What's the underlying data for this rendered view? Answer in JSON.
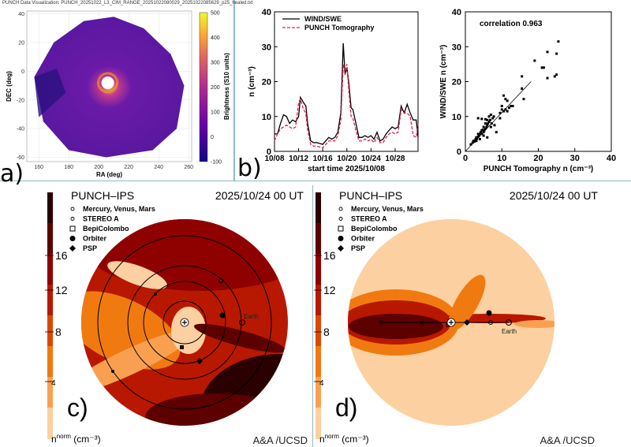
{
  "panel_a": {
    "label": "a)",
    "title": "PUNCH Data Visualization: PUNCH_20251022_L3_CIM_RANGE_20251022080029_20251022085629_p25_healed.txt",
    "chart_data": {
      "type": "heatmap",
      "xlabel": "RA (deg)",
      "ylabel": "DEC (deg)",
      "xlim": [
        152,
        262
      ],
      "ylim": [
        -63,
        42
      ],
      "xticks": [
        160,
        180,
        200,
        220,
        240,
        260
      ],
      "yticks": [
        40,
        20,
        0,
        -20,
        -40,
        -60
      ],
      "colorbar": {
        "label": "Brightness (S10 units)",
        "range": [
          -100,
          500
        ],
        "ticks": [
          500,
          400,
          300,
          200,
          100,
          0,
          -100
        ],
        "colormap": "plasma"
      }
    }
  },
  "panel_b": {
    "label": "b)",
    "chart_data": [
      {
        "type": "line",
        "xlabel": "start time 2025/10/08",
        "ylabel": "n (cm⁻³)",
        "ylim": [
          0,
          40
        ],
        "xlim_days": [
          0,
          23.8
        ],
        "xticks": [
          "10/08",
          "10/12",
          "10/16",
          "10/20",
          "10/24",
          "10/28"
        ],
        "yticks": [
          0,
          10,
          20,
          30,
          40
        ],
        "legend": "top-left",
        "x_days": [
          0,
          0.5,
          1,
          1.5,
          2,
          2.5,
          3,
          3.5,
          4,
          4.3,
          4.8,
          5.2,
          5.5,
          6,
          6.5,
          7,
          8,
          8.5,
          9,
          9.5,
          10,
          10.5,
          11,
          11.4,
          11.7,
          12,
          12.3,
          12.7,
          13,
          13.5,
          14,
          14.5,
          15,
          15.5,
          16,
          16.5,
          17,
          17.5,
          18,
          18.5,
          19,
          19.5,
          20,
          20.5,
          21,
          21.5,
          22,
          22.5,
          23,
          23.5,
          23.8
        ],
        "series": [
          {
            "name": "WIND/SWE",
            "color": "#000000",
            "values": [
              5,
              5,
              8,
              10.5,
              10,
              8,
              9,
              8.5,
              10,
              15.5,
              14,
              13,
              8,
              3,
              2.5,
              2.5,
              2,
              3,
              4,
              3.5,
              4,
              5.5,
              11,
              31,
              22,
              24,
              20,
              12.5,
              12,
              8,
              4,
              4,
              4.5,
              4,
              4.5,
              3.5,
              5.5,
              3,
              3.5,
              5,
              6,
              7,
              6.5,
              7,
              13,
              11,
              13.5,
              11,
              9,
              9,
              4
            ]
          },
          {
            "name": "PUNCH Tomography",
            "color": "#e0204a",
            "values": [
              3,
              5,
              6.5,
              7,
              7.5,
              7,
              6.5,
              7,
              14,
              15,
              12,
              11,
              6,
              2,
              1.5,
              1.5,
              1,
              2,
              3,
              3,
              3,
              4.5,
              9,
              25,
              22,
              25,
              18,
              10,
              9.5,
              6,
              3,
              3,
              3.5,
              3,
              3.5,
              2.5,
              4,
              2.5,
              2.5,
              4,
              5,
              5.5,
              5,
              5.5,
              12,
              11,
              11,
              10,
              4.5,
              4,
              8
            ]
          }
        ]
      },
      {
        "type": "scatter",
        "xlabel": "PUNCH Tomography n (cm⁻³)",
        "ylabel": "WIND/SWE n (cm⁻³)",
        "xlim": [
          0,
          40
        ],
        "ylim": [
          0,
          40
        ],
        "xticks": [
          0,
          10,
          20,
          30,
          40
        ],
        "yticks": [
          0,
          10,
          20,
          30,
          40
        ],
        "annotation": "correlation 0.963",
        "fit_line": [
          [
            0,
            0
          ],
          [
            18,
            20
          ]
        ],
        "points": [
          [
            1.5,
            2
          ],
          [
            2,
            2.5
          ],
          [
            2.2,
            3
          ],
          [
            2.5,
            2.8
          ],
          [
            2.8,
            3.5
          ],
          [
            3,
            3
          ],
          [
            3,
            4
          ],
          [
            3.2,
            3.6
          ],
          [
            3.5,
            4.2
          ],
          [
            3.5,
            5
          ],
          [
            3.8,
            4.5
          ],
          [
            4,
            5
          ],
          [
            4,
            3.5
          ],
          [
            4.2,
            5.5
          ],
          [
            4.5,
            5
          ],
          [
            4.5,
            6
          ],
          [
            4.8,
            6.2
          ],
          [
            5,
            5.5
          ],
          [
            5,
            7
          ],
          [
            5.2,
            6
          ],
          [
            5.5,
            6.5
          ],
          [
            5.5,
            8
          ],
          [
            5.8,
            7
          ],
          [
            6,
            7.5
          ],
          [
            6,
            9
          ],
          [
            6.2,
            8
          ],
          [
            6.5,
            8.5
          ],
          [
            6.5,
            10
          ],
          [
            6.8,
            9
          ],
          [
            7,
            7
          ],
          [
            7,
            10.5
          ],
          [
            7.2,
            8
          ],
          [
            7.5,
            9.5
          ],
          [
            7.8,
            10
          ],
          [
            5,
            4.5
          ],
          [
            6,
            4
          ],
          [
            8.5,
            5.5
          ],
          [
            8,
            7.5
          ],
          [
            3.5,
            9.5
          ],
          [
            4.5,
            9.3
          ],
          [
            5.5,
            9.2
          ],
          [
            9.5,
            9.5
          ],
          [
            9.5,
            11
          ],
          [
            10,
            12
          ],
          [
            10,
            13
          ],
          [
            10.5,
            11.5
          ],
          [
            10.5,
            16
          ],
          [
            11,
            12
          ],
          [
            11,
            15
          ],
          [
            11.5,
            11.5
          ],
          [
            11.5,
            14.5
          ],
          [
            12,
            12.5
          ],
          [
            12.5,
            13
          ],
          [
            13,
            13
          ],
          [
            15.5,
            18
          ],
          [
            15.5,
            21.5
          ],
          [
            16,
            15
          ],
          [
            19,
            26
          ],
          [
            21,
            24
          ],
          [
            21.5,
            24
          ],
          [
            22.5,
            21
          ],
          [
            22.5,
            28.5
          ],
          [
            24.5,
            21.5
          ],
          [
            25,
            22
          ],
          [
            25,
            28
          ],
          [
            25.5,
            31.5
          ]
        ]
      }
    ]
  },
  "panel_c": {
    "label": "c)",
    "title": "PUNCH–IPS",
    "date": "2025/10/24 00 UT",
    "credit": "A&A /UCSD",
    "cbar_label": "n",
    "cbar_sup": "norm",
    "cbar_unit": "(cm⁻³)",
    "cbar_ticks": [
      "16",
      "12",
      "8",
      "4"
    ],
    "legend": [
      "Mercury, Venus, Mars",
      "STEREO A",
      "BepiColombo",
      "Orbiter",
      "PSP"
    ],
    "earth_label": "Earth"
  },
  "panel_d": {
    "label": "d)",
    "title": "PUNCH–IPS",
    "date": "2025/10/24 00 UT",
    "credit": "A&A /UCSD",
    "cbar_label": "n",
    "cbar_sup": "norm",
    "cbar_unit": "(cm⁻³)",
    "cbar_ticks": [
      "16",
      "12",
      "8",
      "4"
    ],
    "legend": [
      "Mercury, Venus, Mars",
      "STEREO A",
      "BepiColombo",
      "Orbiter",
      "PSP"
    ],
    "earth_label": "Earth"
  },
  "colors": {
    "separator": "#8fb9c0",
    "cbar": [
      "#2a0000",
      "#5c0000",
      "#8f0000",
      "#b81800",
      "#d94a00",
      "#f07a10",
      "#f9a050",
      "#fcd0a0"
    ]
  }
}
